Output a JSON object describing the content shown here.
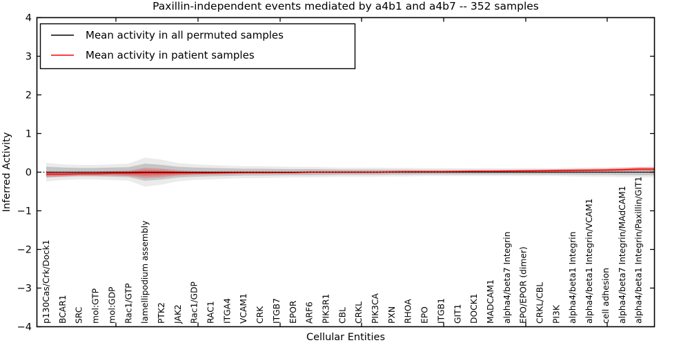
{
  "title": "Paxillin-independent events mediated by a4b1 and a4b7 -- 352 samples",
  "axes": {
    "xlabel": "Cellular Entities",
    "ylabel": "Inferred Activity"
  },
  "legend": {
    "items": [
      {
        "label": "Mean activity in all permuted samples",
        "color": "#000000"
      },
      {
        "label": "Mean activity in patient samples",
        "color": "#ff0000"
      }
    ]
  },
  "colors": {
    "permuted_line": "#000000",
    "patient_line": "#ff0000",
    "permuted_band": "rgba(0,0,0,0.16)",
    "permuted_band_outer": "rgba(0,0,0,0.08)",
    "patient_band": "rgba(255,0,0,0.22)",
    "patient_band_core": "rgba(255,0,0,0.28)",
    "zero_line": "#000000",
    "spine": "#000000"
  },
  "chart_data": {
    "type": "line",
    "title": "Paxillin-independent events mediated by a4b1 and a4b7 -- 352 samples",
    "xlabel": "Cellular Entities",
    "ylabel": "Inferred Activity",
    "ylim": [
      -4,
      4
    ],
    "grid": false,
    "legend_position": "upper left",
    "zero_line_style": "dotted",
    "yticks": [
      {
        "label": "4",
        "value": 4
      },
      {
        "label": "3",
        "value": 3
      },
      {
        "label": "2",
        "value": 2
      },
      {
        "label": "1",
        "value": 1
      },
      {
        "label": "0",
        "value": 0
      },
      {
        "label": "−1",
        "value": -1
      },
      {
        "label": "−2",
        "value": -2
      },
      {
        "label": "−3",
        "value": -3
      },
      {
        "label": "−4",
        "value": -4
      }
    ],
    "categories": [
      "p130Cas/Crk/Dock1",
      "BCAR1",
      "SRC",
      "mol:GTP",
      "mol:GDP",
      "Rac1/GTP",
      "lamellipodium assembly",
      "PTK2",
      "JAK2",
      "Rac1/GDP",
      "RAC1",
      "ITGA4",
      "VCAM1",
      "CRK",
      "ITGB7",
      "EPOR",
      "ARF6",
      "PIK3R1",
      "CBL",
      "CRKL",
      "PIK3CA",
      "PXN",
      "RHOA",
      "EPO",
      "ITGB1",
      "GIT1",
      "DOCK1",
      "MADCAM1",
      "alpha4/beta7 Integrin",
      "EPO/EPOR (dimer)",
      "CRKL/CBL",
      "PI3K",
      "alpha4/beta1 Integrin",
      "alpha4/beta1 Integrin/VCAM1",
      "cell adhesion",
      "alpha4/beta7 Integrin/MAdCAM1",
      "alpha4/beta1 Integrin/Paxillin/GIT1"
    ],
    "series": [
      {
        "name": "Mean activity in all permuted samples",
        "color": "#000000",
        "values": [
          0,
          0,
          0,
          0,
          0,
          0,
          0,
          0,
          0,
          0,
          0,
          0,
          0,
          0,
          0,
          0,
          0,
          0,
          0,
          0,
          0,
          0,
          0,
          0,
          0,
          0,
          0,
          0,
          0,
          0,
          0,
          0,
          0,
          0,
          0,
          0,
          0
        ],
        "band_halfwidth": [
          0.14,
          0.12,
          0.11,
          0.11,
          0.12,
          0.13,
          0.22,
          0.19,
          0.14,
          0.12,
          0.11,
          0.1,
          0.09,
          0.09,
          0.085,
          0.08,
          0.08,
          0.075,
          0.07,
          0.07,
          0.07,
          0.065,
          0.065,
          0.06,
          0.06,
          0.06,
          0.06,
          0.06,
          0.06,
          0.06,
          0.06,
          0.06,
          0.065,
          0.07,
          0.07,
          0.075,
          0.08
        ]
      },
      {
        "name": "Mean activity in patient samples",
        "color": "#ff0000",
        "values": [
          -0.05,
          -0.05,
          -0.04,
          -0.04,
          -0.03,
          -0.03,
          -0.02,
          -0.02,
          -0.02,
          -0.02,
          -0.02,
          -0.015,
          -0.01,
          -0.01,
          -0.01,
          -0.01,
          0,
          0,
          0,
          0,
          0,
          0.005,
          0.01,
          0.01,
          0.01,
          0.015,
          0.02,
          0.02,
          0.025,
          0.03,
          0.035,
          0.04,
          0.045,
          0.05,
          0.055,
          0.065,
          0.08
        ],
        "band_halfwidth": [
          0.07,
          0.06,
          0.05,
          0.05,
          0.06,
          0.07,
          0.13,
          0.11,
          0.07,
          0.05,
          0.04,
          0.04,
          0.035,
          0.035,
          0.03,
          0.03,
          0.03,
          0.03,
          0.03,
          0.03,
          0.03,
          0.03,
          0.03,
          0.03,
          0.03,
          0.03,
          0.03,
          0.03,
          0.03,
          0.035,
          0.035,
          0.035,
          0.04,
          0.04,
          0.04,
          0.045,
          0.05
        ]
      }
    ]
  }
}
